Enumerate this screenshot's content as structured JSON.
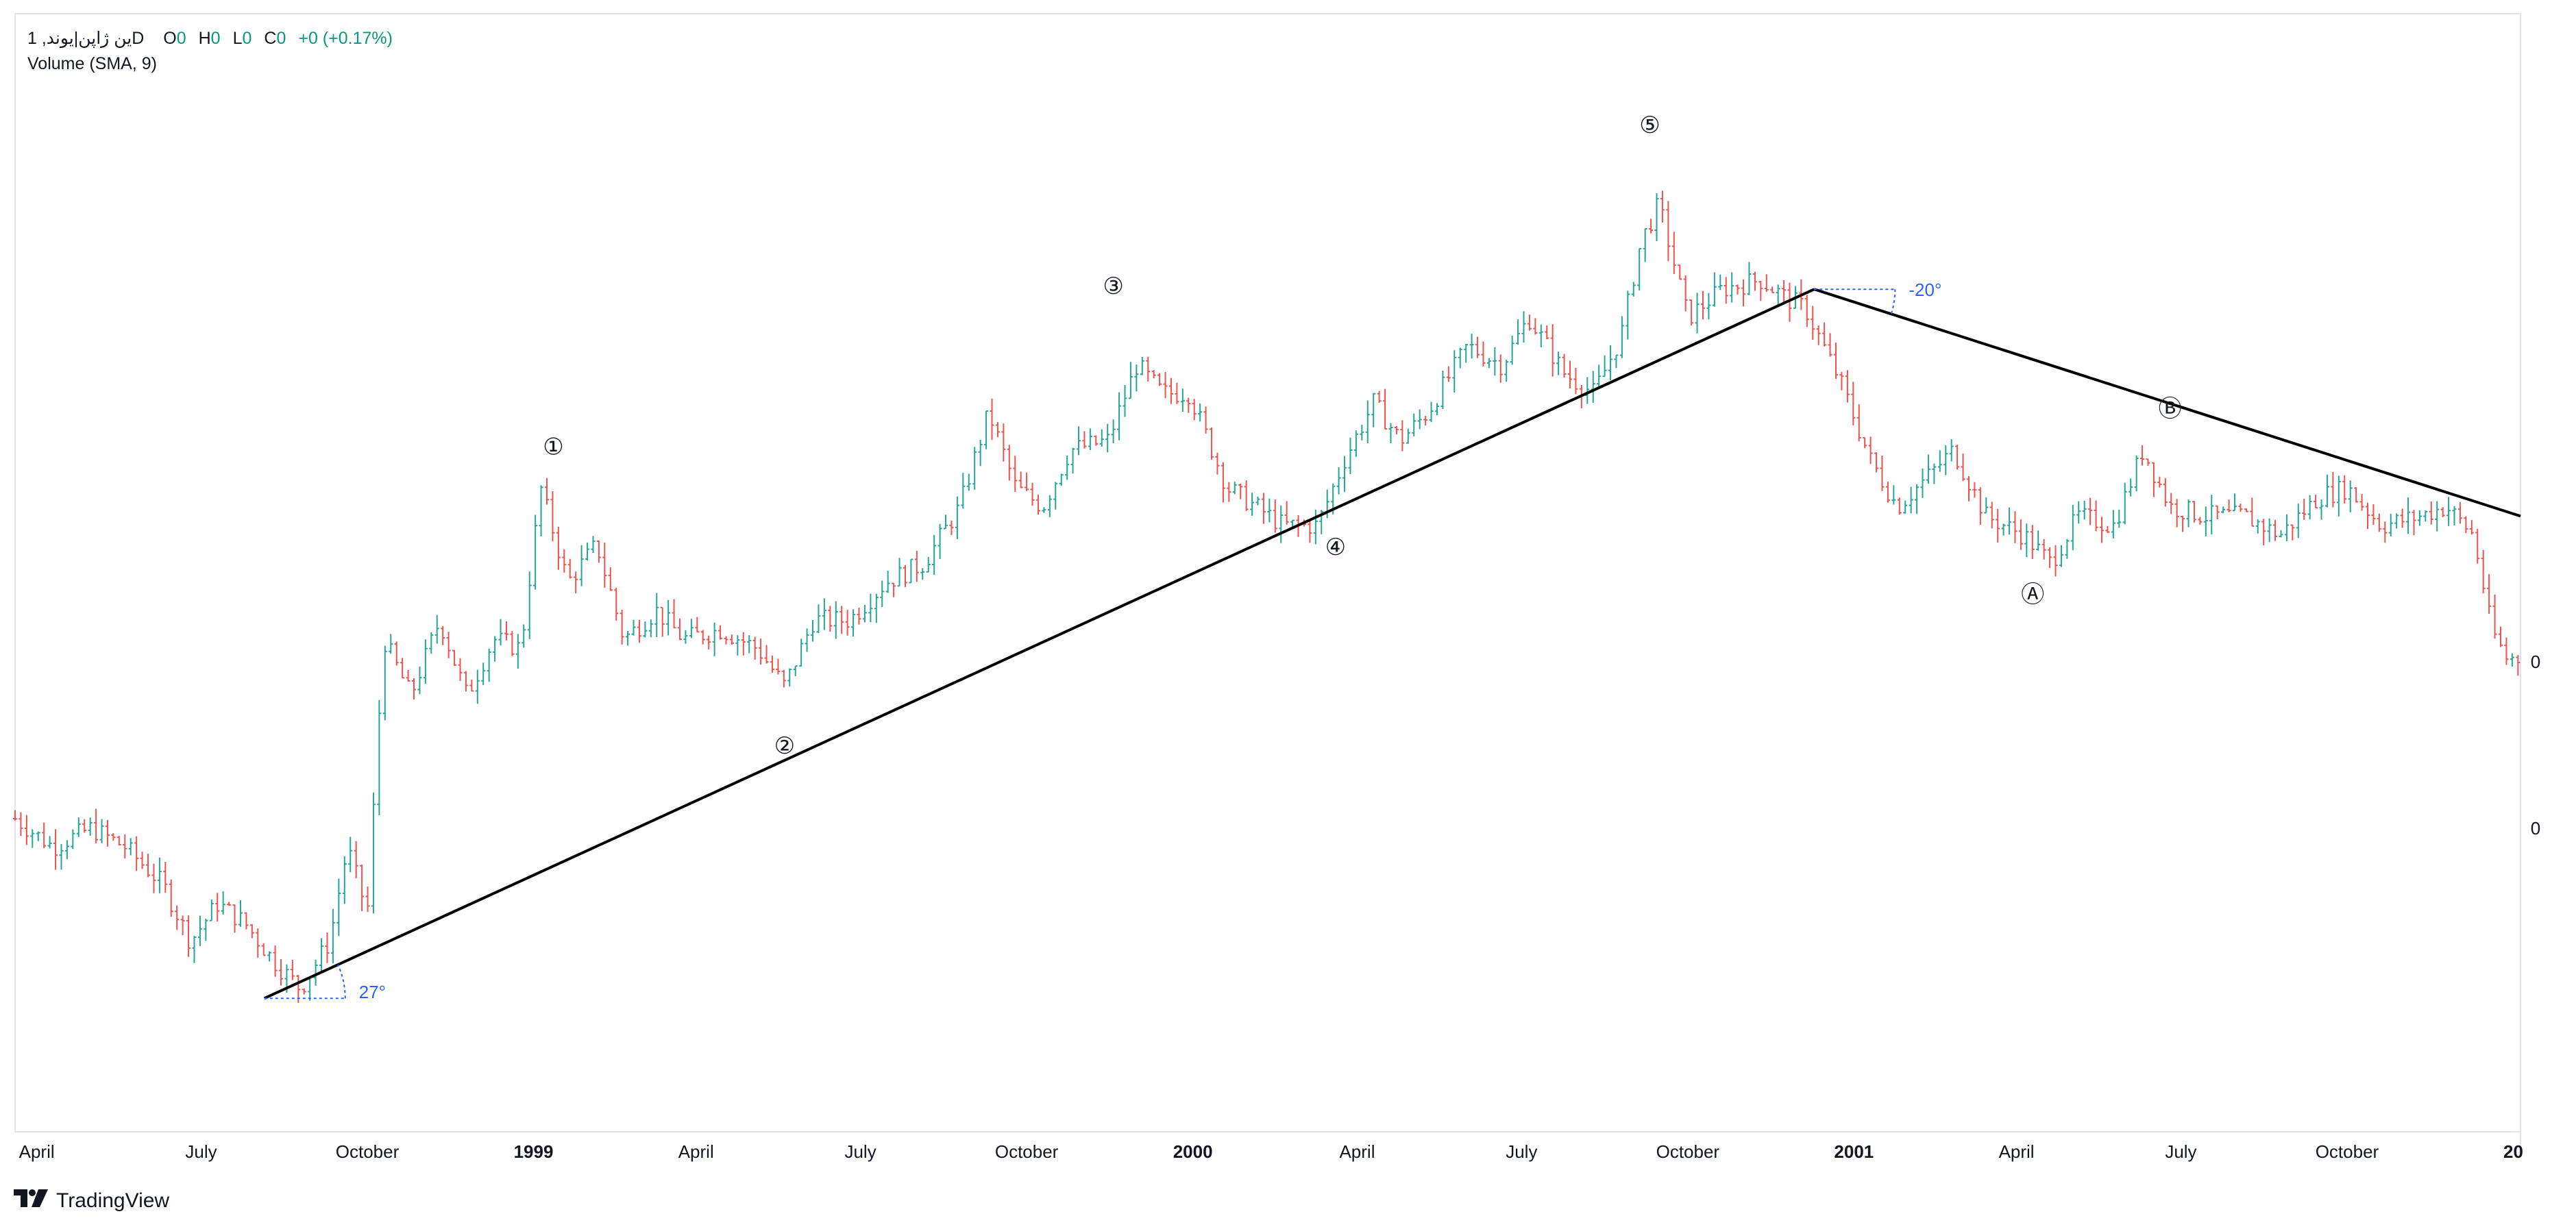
{
  "legend": {
    "symbol": "1 ,ین ژاپن|یوندD",
    "o_label": "O",
    "o_value": "0",
    "h_label": "H",
    "h_value": "0",
    "l_label": "L",
    "l_value": "0",
    "c_label": "C",
    "c_value": "0",
    "change": "+0 (+0.17%)",
    "volume": "Volume (SMA, 9)"
  },
  "price_axis": {
    "price_label": "0",
    "volume_label": "0"
  },
  "brand": {
    "name": "TradingView"
  },
  "colors": {
    "up": "#26a69a",
    "down": "#ef5350",
    "trendline": "#000000",
    "angle": "#2962ff",
    "grid": "#e0e3eb",
    "text": "#131722"
  },
  "icons": {
    "brand_logo": "tradingview-logo-icon"
  },
  "chart_data": {
    "type": "line",
    "description_type": "candlestick-ohlc",
    "x_ticks": [
      "April",
      "July",
      "October",
      "1999",
      "April",
      "July",
      "October",
      "2000",
      "April",
      "July",
      "October",
      "2001",
      "April",
      "July",
      "October",
      "20"
    ],
    "x_tick_dates": [
      "1998-04-01",
      "1998-07-01",
      "1998-10-01",
      "1999-01-01",
      "1999-04-01",
      "1999-07-01",
      "1999-10-01",
      "2000-01-01",
      "2000-04-01",
      "2000-07-01",
      "2000-10-01",
      "2001-01-01",
      "2001-04-01",
      "2001-07-01",
      "2001-10-01",
      "2002-01-01"
    ],
    "x_range": [
      "1998-03-20",
      "2002-01-05"
    ],
    "y_range": [
      0,
      100
    ],
    "series": [
      {
        "values": [
          {
            "x": "1998-03-20",
            "y": 25
          },
          {
            "x": "1998-04-10",
            "y": 22
          },
          {
            "x": "1998-05-01",
            "y": 24
          },
          {
            "x": "1998-05-20",
            "y": 22
          },
          {
            "x": "1998-06-10",
            "y": 18
          },
          {
            "x": "1998-06-25",
            "y": 12
          },
          {
            "x": "1998-07-10",
            "y": 16
          },
          {
            "x": "1998-07-25",
            "y": 14
          },
          {
            "x": "1998-08-10",
            "y": 10
          },
          {
            "x": "1998-08-25",
            "y": 7
          },
          {
            "x": "1998-09-10",
            "y": 12
          },
          {
            "x": "1998-09-20",
            "y": 22
          },
          {
            "x": "1998-10-01",
            "y": 15
          },
          {
            "x": "1998-10-10",
            "y": 44
          },
          {
            "x": "1998-10-25",
            "y": 38
          },
          {
            "x": "1998-11-10",
            "y": 46
          },
          {
            "x": "1998-11-25",
            "y": 38
          },
          {
            "x": "1998-12-10",
            "y": 44
          },
          {
            "x": "1998-12-25",
            "y": 43
          },
          {
            "x": "1999-01-05",
            "y": 60
          },
          {
            "x": "1999-01-20",
            "y": 50
          },
          {
            "x": "1999-02-05",
            "y": 54
          },
          {
            "x": "1999-02-20",
            "y": 44
          },
          {
            "x": "1999-03-10",
            "y": 47
          },
          {
            "x": "1999-03-25",
            "y": 44
          },
          {
            "x": "1999-04-15",
            "y": 45
          },
          {
            "x": "1999-05-05",
            "y": 43
          },
          {
            "x": "1999-05-20",
            "y": 39
          },
          {
            "x": "1999-06-05",
            "y": 46
          },
          {
            "x": "1999-06-25",
            "y": 46
          },
          {
            "x": "1999-07-15",
            "y": 50
          },
          {
            "x": "1999-08-05",
            "y": 52
          },
          {
            "x": "1999-08-25",
            "y": 58
          },
          {
            "x": "1999-09-10",
            "y": 68
          },
          {
            "x": "1999-09-25",
            "y": 60
          },
          {
            "x": "1999-10-10",
            "y": 58
          },
          {
            "x": "1999-10-25",
            "y": 64
          },
          {
            "x": "1999-11-15",
            "y": 65
          },
          {
            "x": "1999-12-01",
            "y": 73
          },
          {
            "x": "1999-12-15",
            "y": 70
          },
          {
            "x": "1999-12-30",
            "y": 70
          },
          {
            "x": "2000-01-20",
            "y": 60
          },
          {
            "x": "2000-02-05",
            "y": 58
          },
          {
            "x": "2000-02-20",
            "y": 56
          },
          {
            "x": "2000-03-10",
            "y": 56
          },
          {
            "x": "2000-03-25",
            "y": 63
          },
          {
            "x": "2000-04-10",
            "y": 69
          },
          {
            "x": "2000-04-25",
            "y": 65
          },
          {
            "x": "2000-05-10",
            "y": 68
          },
          {
            "x": "2000-06-01",
            "y": 75
          },
          {
            "x": "2000-06-20",
            "y": 73
          },
          {
            "x": "2000-07-05",
            "y": 78
          },
          {
            "x": "2000-07-25",
            "y": 72
          },
          {
            "x": "2000-08-10",
            "y": 70
          },
          {
            "x": "2000-08-25",
            "y": 76
          },
          {
            "x": "2000-09-05",
            "y": 86
          },
          {
            "x": "2000-09-15",
            "y": 90
          },
          {
            "x": "2000-10-01",
            "y": 78
          },
          {
            "x": "2000-10-20",
            "y": 81
          },
          {
            "x": "2000-11-10",
            "y": 82
          },
          {
            "x": "2000-11-25",
            "y": 80
          },
          {
            "x": "2000-12-05",
            "y": 79
          },
          {
            "x": "2000-12-25",
            "y": 71
          },
          {
            "x": "2001-01-10",
            "y": 63
          },
          {
            "x": "2001-01-25",
            "y": 58
          },
          {
            "x": "2001-02-10",
            "y": 61
          },
          {
            "x": "2001-02-25",
            "y": 64
          },
          {
            "x": "2001-03-15",
            "y": 57
          },
          {
            "x": "2001-04-05",
            "y": 55
          },
          {
            "x": "2001-04-20",
            "y": 52
          },
          {
            "x": "2001-05-05",
            "y": 57
          },
          {
            "x": "2001-05-25",
            "y": 56
          },
          {
            "x": "2001-06-10",
            "y": 64
          },
          {
            "x": "2001-06-25",
            "y": 58
          },
          {
            "x": "2001-07-15",
            "y": 57
          },
          {
            "x": "2001-08-05",
            "y": 57
          },
          {
            "x": "2001-08-25",
            "y": 55
          },
          {
            "x": "2001-09-15",
            "y": 59
          },
          {
            "x": "2001-10-01",
            "y": 60
          },
          {
            "x": "2001-10-20",
            "y": 56
          },
          {
            "x": "2001-11-10",
            "y": 57
          },
          {
            "x": "2001-11-25",
            "y": 58
          },
          {
            "x": "2001-12-10",
            "y": 55
          },
          {
            "x": "2001-12-20",
            "y": 45
          },
          {
            "x": "2001-12-28",
            "y": 42
          }
        ]
      }
    ],
    "annotations": [
      {
        "label": "①",
        "x": "1999-01-12",
        "y": 62,
        "position": "above"
      },
      {
        "label": "②",
        "x": "1999-05-20",
        "y": 35,
        "position": "below"
      },
      {
        "label": "③",
        "x": "1999-11-18",
        "y": 79,
        "position": "above"
      },
      {
        "label": "④",
        "x": "2000-03-20",
        "y": 56,
        "position": "below"
      },
      {
        "label": "⑤",
        "x": "2000-09-10",
        "y": 96,
        "position": "above"
      },
      {
        "label": "Ⓐ",
        "x": "2001-04-10",
        "y": 51,
        "position": "below"
      },
      {
        "label": "Ⓑ",
        "x": "2001-06-25",
        "y": 66,
        "position": "above"
      }
    ],
    "trendlines": [
      {
        "from": {
          "x": "1998-08-05",
          "y": 6
        },
        "to": {
          "x": "2000-12-10",
          "y": 81
        },
        "angle_label": "27°"
      },
      {
        "from": {
          "x": "2000-12-10",
          "y": 81
        },
        "to": {
          "x": "2002-01-05",
          "y": 57
        },
        "angle_label": "-20°"
      }
    ],
    "grid": false,
    "legend": "none"
  }
}
